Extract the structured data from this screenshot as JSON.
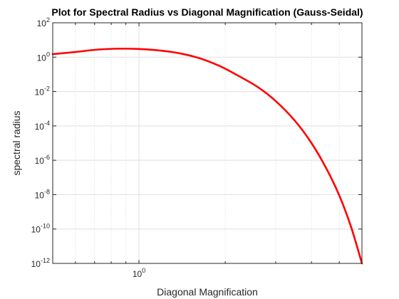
{
  "chart_data": {
    "type": "line",
    "title": "Plot for Spectral Radius vs Diagonal Magnification (Gauss-Seidal)",
    "xlabel": "Diagonal Magnification",
    "ylabel": "spectral radius",
    "xscale": "log",
    "yscale": "log",
    "xlim": [
      0.5,
      6.0
    ],
    "ylim": [
      1e-12,
      100
    ],
    "grid": true,
    "x_tick_labels": [
      {
        "x": 1,
        "base": "10",
        "exp": "0"
      }
    ],
    "y_tick_labels": [
      {
        "y": 100,
        "base": "10",
        "exp": "2"
      },
      {
        "y": 1,
        "base": "10",
        "exp": "0"
      },
      {
        "y": 0.01,
        "base": "10",
        "exp": "-2"
      },
      {
        "y": 0.0001,
        "base": "10",
        "exp": "-4"
      },
      {
        "y": 1e-06,
        "base": "10",
        "exp": "-6"
      },
      {
        "y": 1e-08,
        "base": "10",
        "exp": "-8"
      },
      {
        "y": 1e-10,
        "base": "10",
        "exp": "-10"
      },
      {
        "y": 1e-12,
        "base": "10",
        "exp": "-12"
      }
    ],
    "series": [
      {
        "color": "#ff0000",
        "x": [
          0.5,
          0.6,
          0.75,
          1.0,
          1.3,
          1.6,
          1.9,
          2.2,
          2.6,
          3.0,
          3.5,
          4.0,
          4.5,
          5.0,
          5.5,
          6.0
        ],
        "y": [
          1.5,
          2.0,
          2.9,
          3.0,
          2.0,
          0.95,
          0.32,
          0.09,
          0.018,
          0.0028,
          0.0002,
          1e-05,
          3.5e-07,
          9e-09,
          1.3e-10,
          1e-12
        ]
      }
    ]
  }
}
